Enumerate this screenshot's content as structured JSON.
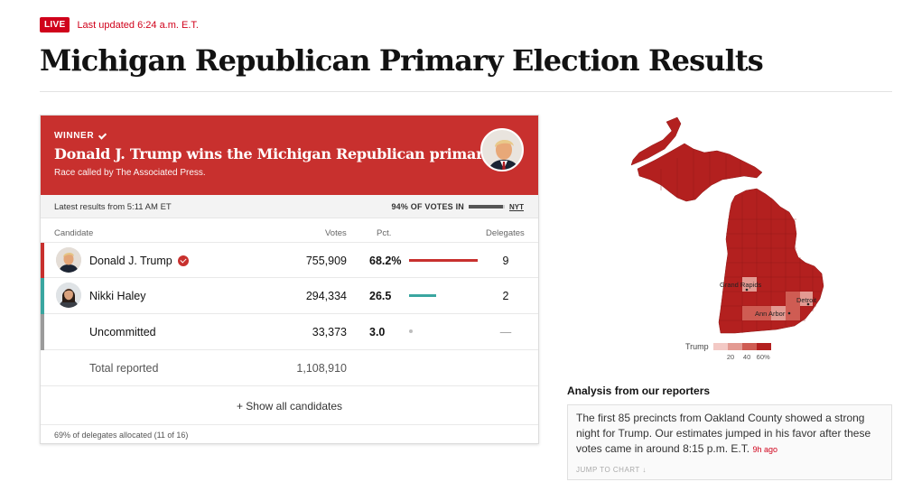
{
  "header": {
    "live_label": "LIVE",
    "updated": "Last updated 6:24 a.m. E.T.",
    "title": "Michigan Republican Primary Election Results"
  },
  "winner": {
    "label": "WINNER",
    "headline": "Donald J. Trump wins the Michigan Republican primary.",
    "sub": "Race called by The Associated Press."
  },
  "status": {
    "latest": "Latest results from 5:11 AM ET",
    "pct_in_label": "94% OF VOTES IN",
    "pct_in_value": 94,
    "source": "NYT"
  },
  "columns": {
    "candidate": "Candidate",
    "votes": "Votes",
    "pct": "Pct.",
    "delegates": "Delegates"
  },
  "candidates": [
    {
      "name": "Donald J. Trump",
      "votes": "755,909",
      "pct": "68.2%",
      "pct_value": 68.2,
      "delegates": "9",
      "color": "#c8302e"
    },
    {
      "name": "Nikki Haley",
      "votes": "294,334",
      "pct": "26.5",
      "pct_value": 26.5,
      "delegates": "2",
      "color": "#3aa6a0"
    },
    {
      "name": "Uncommitted",
      "votes": "33,373",
      "pct": "3.0",
      "pct_value": 3.0,
      "delegates": "—",
      "color": "#9b9b9b"
    }
  ],
  "total": {
    "label": "Total reported",
    "votes": "1,108,910"
  },
  "show_all": "+ Show all candidates",
  "footnote": "69% of delegates allocated (11 of 16)",
  "map": {
    "cities": [
      "Grand Rapids",
      "Ann Arbor",
      "Detroit"
    ],
    "legend_title": "Trump",
    "legend_ticks": [
      "20",
      "40",
      "60%"
    ],
    "legend_colors": [
      "#f3c9c5",
      "#e39a92",
      "#cf5c53",
      "#b3201f"
    ]
  },
  "analysis": {
    "title": "Analysis from our reporters",
    "text": "The first 85 precincts from Oakland County showed a strong night for Trump. Our estimates jumped in his favor after these votes came in around 8:15 p.m. E.T.",
    "time_ago": "9h ago",
    "jump": "JUMP TO CHART ↓"
  }
}
